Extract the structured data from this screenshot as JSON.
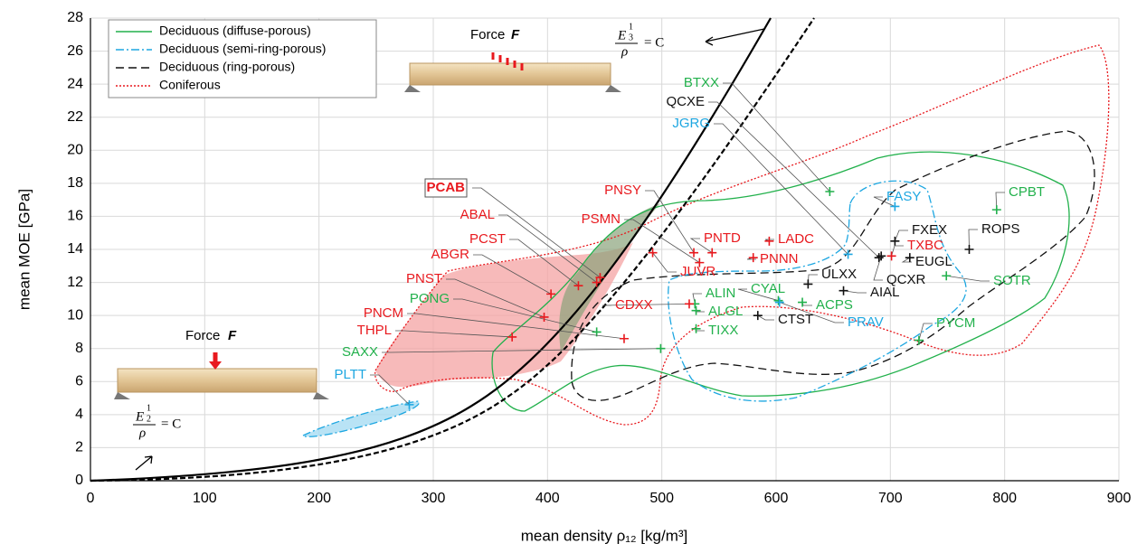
{
  "chart_data": {
    "type": "scatter",
    "xlabel": "mean density ρ₁₂ [kg/m³]",
    "ylabel": "mean MOE [GPa]",
    "xlim": [
      0,
      900
    ],
    "ylim": [
      0,
      28
    ],
    "xticks": [
      0,
      100,
      200,
      300,
      400,
      500,
      600,
      700,
      800,
      900
    ],
    "yticks": [
      0,
      2,
      4,
      6,
      8,
      10,
      12,
      14,
      16,
      18,
      20,
      22,
      24,
      26,
      28
    ],
    "grid": true,
    "legend": "upper left",
    "series": [
      {
        "name": "Deciduous (diffuse-porous)",
        "color": "#22b14c",
        "linestyle": "solid",
        "labels": [
          "BTXX",
          "PONG",
          "SAXX",
          "ALIN",
          "ALGL",
          "TIXX",
          "CYAL",
          "ACPS",
          "SOTR",
          "CPBT",
          "PYCM"
        ],
        "x": [
          647,
          443,
          499,
          529,
          530,
          530,
          602,
          623,
          749,
          793,
          725
        ],
        "values": [
          17.5,
          9.0,
          8.0,
          10.7,
          10.3,
          9.2,
          10.9,
          10.8,
          12.4,
          16.4,
          8.5
        ]
      },
      {
        "name": "Deciduous (semi-ring-porous)",
        "color": "#1ea7e1",
        "linestyle": "dashdot",
        "labels": [
          "JGRG",
          "FASY",
          "PRAV",
          "PLTT"
        ],
        "x": [
          663,
          704,
          603,
          279
        ],
        "values": [
          13.7,
          16.6,
          10.8,
          4.6
        ]
      },
      {
        "name": "Deciduous (ring-porous)",
        "color": "#111111",
        "linestyle": "dashed",
        "labels": [
          "QCXE",
          "FXEX",
          "EUGL",
          "QCXR",
          "ROPS",
          "ULXX",
          "AIAL",
          "CTST"
        ],
        "x": [
          690,
          704,
          717,
          692,
          769,
          628,
          659,
          584
        ],
        "values": [
          13.5,
          14.5,
          13.5,
          13.6,
          14.0,
          11.9,
          11.5,
          10.0
        ]
      },
      {
        "name": "Coniferous",
        "color": "#e8191e",
        "linestyle": "dotted",
        "highlight_index": 0,
        "labels": [
          "PCAB",
          "ABAL",
          "PCST",
          "ABGR",
          "PNST",
          "PNCM",
          "THPL",
          "PNSY",
          "PSMN",
          "PNTD",
          "JUVR",
          "CDXX",
          "LADC",
          "PNNN",
          "TXBC"
        ],
        "x": [
          446,
          443,
          427,
          403,
          397,
          467,
          369,
          528,
          533,
          544,
          492,
          524,
          594,
          580,
          701
        ],
        "values": [
          12.3,
          12.0,
          11.8,
          11.3,
          9.9,
          8.6,
          8.7,
          13.8,
          13.2,
          13.8,
          13.8,
          10.7,
          14.5,
          13.5,
          13.6
        ]
      }
    ],
    "annotations": {
      "force": [
        "Force",
        "F"
      ],
      "force2": [
        "Force",
        "F"
      ],
      "law_sqrt": {
        "base": "E",
        "exp_num": "1",
        "exp_den": "2",
        "den": "ρ",
        "rhs": "= C"
      },
      "law_cbrt": {
        "base": "E",
        "exp_num": "1",
        "exp_den": "3",
        "den": "ρ",
        "rhs": "= C"
      }
    }
  }
}
